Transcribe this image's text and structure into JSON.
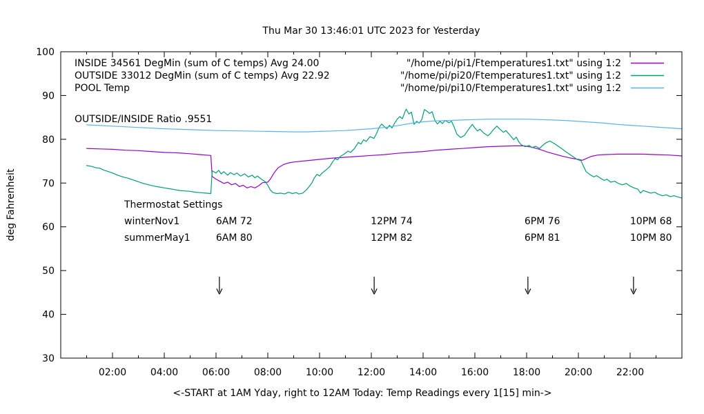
{
  "chart_data": {
    "type": "line",
    "title": "Thu Mar 30 13:46:01 UTC 2023 for Yesterday",
    "xlabel": "<-START at 1AM Yday, right to 12AM Today:  Temp Readings every 1[15] min->",
    "ylabel": "deg Fahrenheit",
    "xlim_hours": [
      0,
      24
    ],
    "ylim": [
      30,
      100
    ],
    "grid": "off",
    "legend_position": "top-inside",
    "y_ticks": [
      30,
      40,
      50,
      60,
      70,
      80,
      90,
      100
    ],
    "x_ticks": [
      {
        "hour": 2,
        "label": "02:00"
      },
      {
        "hour": 4,
        "label": "04:00"
      },
      {
        "hour": 6,
        "label": "06:00"
      },
      {
        "hour": 8,
        "label": "08:00"
      },
      {
        "hour": 10,
        "label": "10:00"
      },
      {
        "hour": 12,
        "label": "12:00"
      },
      {
        "hour": 14,
        "label": "14:00"
      },
      {
        "hour": 16,
        "label": "16:00"
      },
      {
        "hour": 18,
        "label": "18:00"
      },
      {
        "hour": 20,
        "label": "20:00"
      },
      {
        "hour": 22,
        "label": "22:00"
      }
    ],
    "x_minor_tick_hours": [
      1,
      3,
      5,
      7,
      9,
      11,
      13,
      15,
      17,
      19,
      21,
      23
    ],
    "series": [
      {
        "name": "INSIDE",
        "legend_left": "INSIDE 34561 DegMin (sum of C temps) Avg 24.00",
        "legend_right": "\"/home/pi/pi1/Ftemperatures1.txt\" using 1:2",
        "color": "#9400d3",
        "points": [
          [
            1,
            77.9
          ],
          [
            1.5,
            77.8
          ],
          [
            2,
            77.7
          ],
          [
            2.5,
            77.5
          ],
          [
            3,
            77.4
          ],
          [
            3.5,
            77.2
          ],
          [
            4,
            77.0
          ],
          [
            4.5,
            76.9
          ],
          [
            5,
            76.7
          ],
          [
            5.4,
            76.5
          ],
          [
            5.8,
            76.3
          ],
          [
            5.85,
            71.5
          ],
          [
            6,
            70.9
          ],
          [
            6.15,
            70.4
          ],
          [
            6.3,
            69.9
          ],
          [
            6.45,
            70.2
          ],
          [
            6.6,
            69.6
          ],
          [
            6.75,
            69.9
          ],
          [
            6.9,
            69.2
          ],
          [
            7.05,
            69.5
          ],
          [
            7.2,
            68.9
          ],
          [
            7.35,
            69.2
          ],
          [
            7.5,
            68.9
          ],
          [
            7.65,
            69.4
          ],
          [
            7.8,
            70.1
          ],
          [
            8.0,
            70.2
          ],
          [
            8.1,
            70.9
          ],
          [
            8.25,
            72.4
          ],
          [
            8.4,
            73.5
          ],
          [
            8.6,
            74.2
          ],
          [
            8.8,
            74.6
          ],
          [
            9,
            74.8
          ],
          [
            9.5,
            75.1
          ],
          [
            10,
            75.4
          ],
          [
            10.5,
            75.7
          ],
          [
            11,
            75.9
          ],
          [
            11.5,
            76.1
          ],
          [
            12,
            76.3
          ],
          [
            12.5,
            76.5
          ],
          [
            13,
            76.8
          ],
          [
            13.5,
            77.0
          ],
          [
            14,
            77.2
          ],
          [
            14.5,
            77.5
          ],
          [
            15,
            77.7
          ],
          [
            15.5,
            77.9
          ],
          [
            16,
            78.1
          ],
          [
            16.5,
            78.3
          ],
          [
            17,
            78.4
          ],
          [
            17.5,
            78.5
          ],
          [
            17.9,
            78.5
          ],
          [
            18.2,
            78.2
          ],
          [
            18.5,
            77.7
          ],
          [
            18.8,
            77.1
          ],
          [
            19.1,
            76.6
          ],
          [
            19.4,
            76.1
          ],
          [
            19.7,
            75.7
          ],
          [
            20.0,
            75.4
          ],
          [
            20.15,
            75.2
          ],
          [
            20.3,
            75.6
          ],
          [
            20.5,
            76.1
          ],
          [
            20.75,
            76.4
          ],
          [
            21,
            76.5
          ],
          [
            21.5,
            76.6
          ],
          [
            22,
            76.6
          ],
          [
            22.5,
            76.6
          ],
          [
            23,
            76.5
          ],
          [
            23.5,
            76.4
          ],
          [
            24,
            76.2
          ]
        ]
      },
      {
        "name": "OUTSIDE",
        "legend_left": "OUTSIDE 33012 DegMin (sum of C temps) Avg 22.92",
        "legend_right": "\"/home/pi/pi20/Ftemperatures1.txt\" using 1:2",
        "color": "#009e73",
        "points": [
          [
            1,
            74.0
          ],
          [
            1.2,
            73.8
          ],
          [
            1.35,
            73.5
          ],
          [
            1.5,
            73.4
          ],
          [
            1.65,
            73.0
          ],
          [
            1.8,
            72.7
          ],
          [
            2,
            72.3
          ],
          [
            2.2,
            71.8
          ],
          [
            2.4,
            71.4
          ],
          [
            2.6,
            71.1
          ],
          [
            2.8,
            70.7
          ],
          [
            3,
            70.3
          ],
          [
            3.2,
            69.9
          ],
          [
            3.4,
            69.6
          ],
          [
            3.6,
            69.3
          ],
          [
            3.8,
            69.1
          ],
          [
            4,
            68.9
          ],
          [
            4.2,
            68.7
          ],
          [
            4.4,
            68.5
          ],
          [
            4.6,
            68.3
          ],
          [
            4.8,
            68.2
          ],
          [
            5,
            68.1
          ],
          [
            5.2,
            67.9
          ],
          [
            5.4,
            67.8
          ],
          [
            5.6,
            67.7
          ],
          [
            5.8,
            67.6
          ],
          [
            5.85,
            72.8
          ],
          [
            6,
            72.3
          ],
          [
            6.1,
            72.9
          ],
          [
            6.2,
            72.1
          ],
          [
            6.3,
            72.6
          ],
          [
            6.45,
            71.8
          ],
          [
            6.55,
            72.4
          ],
          [
            6.7,
            71.9
          ],
          [
            6.8,
            72.3
          ],
          [
            6.95,
            71.6
          ],
          [
            7.1,
            72.1
          ],
          [
            7.25,
            71.4
          ],
          [
            7.4,
            71.8
          ],
          [
            7.5,
            71.2
          ],
          [
            7.6,
            71.6
          ],
          [
            7.75,
            70.9
          ],
          [
            7.9,
            70.3
          ],
          [
            8,
            69.5
          ],
          [
            8.1,
            68.4
          ],
          [
            8.2,
            67.8
          ],
          [
            8.35,
            67.6
          ],
          [
            8.5,
            67.7
          ],
          [
            8.65,
            67.5
          ],
          [
            8.8,
            67.9
          ],
          [
            8.95,
            67.6
          ],
          [
            9.1,
            67.8
          ],
          [
            9.2,
            67.5
          ],
          [
            9.35,
            67.7
          ],
          [
            9.5,
            68.5
          ],
          [
            9.6,
            69.2
          ],
          [
            9.7,
            70.0
          ],
          [
            9.8,
            71.2
          ],
          [
            9.9,
            72.0
          ],
          [
            10,
            71.6
          ],
          [
            10.1,
            72.3
          ],
          [
            10.25,
            73.0
          ],
          [
            10.4,
            73.8
          ],
          [
            10.5,
            74.8
          ],
          [
            10.6,
            75.6
          ],
          [
            10.7,
            75.3
          ],
          [
            10.8,
            76.1
          ],
          [
            10.95,
            76.6
          ],
          [
            11.1,
            77.3
          ],
          [
            11.2,
            77.0
          ],
          [
            11.35,
            77.9
          ],
          [
            11.5,
            79.3
          ],
          [
            11.6,
            78.9
          ],
          [
            11.7,
            79.9
          ],
          [
            11.8,
            79.5
          ],
          [
            11.95,
            80.6
          ],
          [
            12.1,
            80.2
          ],
          [
            12.2,
            81.3
          ],
          [
            12.3,
            82.7
          ],
          [
            12.4,
            83.5
          ],
          [
            12.5,
            82.9
          ],
          [
            12.6,
            82.4
          ],
          [
            12.7,
            83.2
          ],
          [
            12.8,
            82.6
          ],
          [
            12.9,
            83.7
          ],
          [
            13,
            84.6
          ],
          [
            13.1,
            85.2
          ],
          [
            13.2,
            84.7
          ],
          [
            13.3,
            86.3
          ],
          [
            13.35,
            86.9
          ],
          [
            13.45,
            85.8
          ],
          [
            13.55,
            86.2
          ],
          [
            13.65,
            83.4
          ],
          [
            13.75,
            84.1
          ],
          [
            13.85,
            83.7
          ],
          [
            13.95,
            84.5
          ],
          [
            14.05,
            86.8
          ],
          [
            14.15,
            86.4
          ],
          [
            14.25,
            85.9
          ],
          [
            14.35,
            86.3
          ],
          [
            14.45,
            84.4
          ],
          [
            14.55,
            83.5
          ],
          [
            14.65,
            84.1
          ],
          [
            14.75,
            83.6
          ],
          [
            14.85,
            84.3
          ],
          [
            15,
            83.8
          ],
          [
            15.1,
            84.1
          ],
          [
            15.2,
            82.8
          ],
          [
            15.3,
            81.2
          ],
          [
            15.45,
            80.4
          ],
          [
            15.6,
            80.9
          ],
          [
            15.75,
            82.2
          ],
          [
            15.9,
            83.4
          ],
          [
            16,
            82.6
          ],
          [
            16.1,
            81.9
          ],
          [
            16.2,
            82.3
          ],
          [
            16.35,
            81.4
          ],
          [
            16.5,
            80.8
          ],
          [
            16.6,
            81.3
          ],
          [
            16.7,
            82.1
          ],
          [
            16.85,
            83.0
          ],
          [
            16.95,
            82.4
          ],
          [
            17.1,
            81.6
          ],
          [
            17.2,
            82.0
          ],
          [
            17.35,
            81.0
          ],
          [
            17.5,
            79.9
          ],
          [
            17.6,
            80.5
          ],
          [
            17.7,
            79.4
          ],
          [
            17.8,
            78.7
          ],
          [
            17.95,
            78.3
          ],
          [
            18.1,
            78.6
          ],
          [
            18.2,
            78.1
          ],
          [
            18.35,
            78.4
          ],
          [
            18.5,
            77.9
          ],
          [
            18.6,
            78.5
          ],
          [
            18.75,
            79.2
          ],
          [
            18.9,
            79.6
          ],
          [
            19.05,
            79.1
          ],
          [
            19.2,
            78.5
          ],
          [
            19.35,
            77.9
          ],
          [
            19.5,
            77.2
          ],
          [
            19.65,
            76.6
          ],
          [
            19.8,
            76.0
          ],
          [
            19.95,
            75.4
          ],
          [
            20.1,
            75.1
          ],
          [
            20.2,
            73.8
          ],
          [
            20.3,
            72.6
          ],
          [
            20.45,
            71.9
          ],
          [
            20.6,
            71.4
          ],
          [
            20.7,
            71.7
          ],
          [
            20.85,
            71.1
          ],
          [
            21,
            70.6
          ],
          [
            21.1,
            70.9
          ],
          [
            21.25,
            70.2
          ],
          [
            21.4,
            70.4
          ],
          [
            21.55,
            69.9
          ],
          [
            21.7,
            69.6
          ],
          [
            21.85,
            69.9
          ],
          [
            22,
            69.3
          ],
          [
            22.15,
            68.9
          ],
          [
            22.3,
            68.6
          ],
          [
            22.4,
            67.7
          ],
          [
            22.5,
            68.3
          ],
          [
            22.65,
            68.0
          ],
          [
            22.8,
            67.7
          ],
          [
            22.95,
            67.9
          ],
          [
            23.1,
            67.4
          ],
          [
            23.25,
            67.1
          ],
          [
            23.4,
            67.3
          ],
          [
            23.55,
            66.9
          ],
          [
            23.7,
            67.1
          ],
          [
            23.85,
            66.8
          ],
          [
            24,
            66.6
          ]
        ]
      },
      {
        "name": "POOL",
        "legend_left": "POOL Temp",
        "legend_right": "\"/home/pi/pi10/Ftemperatures1.txt\" using 1:2",
        "color": "#56b4e9",
        "points": [
          [
            1,
            83.3
          ],
          [
            2,
            83.0
          ],
          [
            3,
            82.7
          ],
          [
            4,
            82.4
          ],
          [
            5,
            82.2
          ],
          [
            6,
            82.0
          ],
          [
            7,
            81.9
          ],
          [
            8,
            81.8
          ],
          [
            9,
            81.7
          ],
          [
            9.5,
            81.7
          ],
          [
            10,
            81.8
          ],
          [
            10.5,
            81.9
          ],
          [
            11,
            82.0
          ],
          [
            11.5,
            82.2
          ],
          [
            12,
            82.4
          ],
          [
            12.5,
            82.7
          ],
          [
            13,
            83.1
          ],
          [
            13.5,
            83.6
          ],
          [
            14,
            84.0
          ],
          [
            14.5,
            84.2
          ],
          [
            15,
            84.3
          ],
          [
            15.5,
            84.4
          ],
          [
            16,
            84.5
          ],
          [
            16.5,
            84.6
          ],
          [
            17,
            84.6
          ],
          [
            17.5,
            84.6
          ],
          [
            18,
            84.6
          ],
          [
            18.5,
            84.5
          ],
          [
            19,
            84.4
          ],
          [
            19.5,
            84.3
          ],
          [
            20,
            84.1
          ],
          [
            20.5,
            83.9
          ],
          [
            21,
            83.7
          ],
          [
            21.5,
            83.4
          ],
          [
            22,
            83.2
          ],
          [
            22.5,
            83.0
          ],
          [
            23,
            82.8
          ],
          [
            23.5,
            82.6
          ],
          [
            24,
            82.4
          ]
        ]
      }
    ],
    "annotations": {
      "ratio_text": "OUTSIDE/INSIDE Ratio .9551",
      "thermostat": {
        "heading": "Thermostat Settings",
        "rows": [
          {
            "label": "winterNov1",
            "values": [
              "6AM 72",
              "12PM 74",
              "6PM 76",
              "10PM 68"
            ]
          },
          {
            "label": "summerMay1",
            "values": [
              "6AM 80",
              "12PM 82",
              "6PM 81",
              "10PM 80"
            ]
          }
        ]
      },
      "arrow_hours": [
        6.13,
        12.11,
        18.05,
        22.13
      ],
      "arrow_temp_from": 48.6,
      "arrow_temp_to": 44.6,
      "arrow_color": "#000000"
    }
  }
}
